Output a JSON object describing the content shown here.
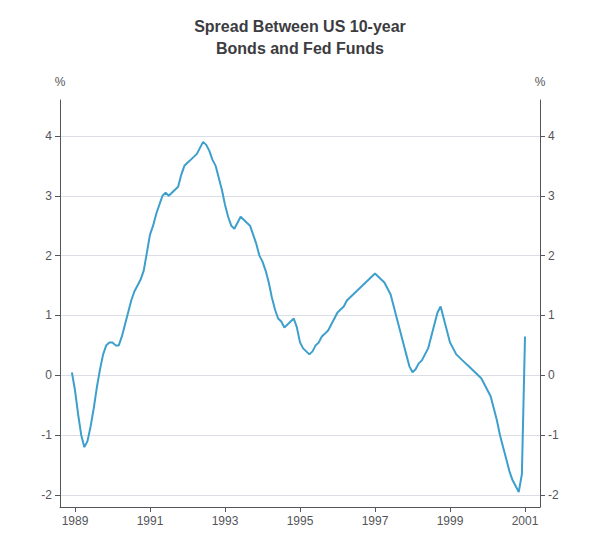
{
  "chart_data": {
    "type": "line",
    "title": "Spread Between US 10-year\nBonds and Fed Funds",
    "ylabel": "%",
    "y2label": "%",
    "color": "#3d9fcc",
    "grid": true,
    "xlim": [
      1988.6,
      2001.4
    ],
    "xticks": [
      1989,
      1991,
      1993,
      1995,
      1997,
      1999,
      2001
    ],
    "ylim": [
      -2.2,
      4.6
    ],
    "yticks": [
      -2,
      -1,
      0,
      1,
      2,
      3,
      4
    ],
    "y2lim": [
      -2.2,
      4.6
    ],
    "y2ticks": [
      -2,
      -1,
      0,
      1,
      2,
      3,
      4
    ],
    "x": [
      1988.917,
      1989.0,
      1989.083,
      1989.167,
      1989.25,
      1989.333,
      1989.417,
      1989.5,
      1989.583,
      1989.667,
      1989.75,
      1989.833,
      1989.917,
      1990.0,
      1990.083,
      1990.167,
      1990.25,
      1990.333,
      1990.417,
      1990.5,
      1990.583,
      1990.667,
      1990.75,
      1990.833,
      1990.917,
      1991.0,
      1991.083,
      1991.167,
      1991.25,
      1991.333,
      1991.417,
      1991.5,
      1991.583,
      1991.667,
      1991.75,
      1991.833,
      1991.917,
      1992.0,
      1992.083,
      1992.167,
      1992.25,
      1992.333,
      1992.417,
      1992.5,
      1992.583,
      1992.667,
      1992.75,
      1992.833,
      1992.917,
      1993.0,
      1993.083,
      1993.167,
      1993.25,
      1993.333,
      1993.417,
      1993.5,
      1993.583,
      1993.667,
      1993.75,
      1993.833,
      1993.917,
      1994.0,
      1994.083,
      1994.167,
      1994.25,
      1994.333,
      1994.417,
      1994.5,
      1994.583,
      1994.667,
      1994.75,
      1994.833,
      1994.917,
      1995.0,
      1995.083,
      1995.167,
      1995.25,
      1995.333,
      1995.417,
      1995.5,
      1995.583,
      1995.667,
      1995.75,
      1995.833,
      1995.917,
      1996.0,
      1996.083,
      1996.167,
      1996.25,
      1996.333,
      1996.417,
      1996.5,
      1996.583,
      1996.667,
      1996.75,
      1996.833,
      1996.917,
      1997.0,
      1997.083,
      1997.167,
      1997.25,
      1997.333,
      1997.417,
      1997.5,
      1997.583,
      1997.667,
      1997.75,
      1997.833,
      1997.917,
      1998.0,
      1998.083,
      1998.167,
      1998.25,
      1998.333,
      1998.417,
      1998.5,
      1998.583,
      1998.667,
      1998.75,
      1998.833,
      1998.917,
      1999.0,
      1999.083,
      1999.167,
      1999.25,
      1999.333,
      1999.417,
      1999.5,
      1999.583,
      1999.667,
      1999.75,
      1999.833,
      1999.917,
      2000.0,
      2000.083,
      2000.167,
      2000.25,
      2000.333,
      2000.417,
      2000.5,
      2000.583,
      2000.667,
      2000.75,
      2000.833,
      2000.917,
      2001.0
    ],
    "values": [
      0.05,
      -0.25,
      -0.65,
      -1.0,
      -1.2,
      -1.1,
      -0.85,
      -0.55,
      -0.2,
      0.1,
      0.35,
      0.5,
      0.55,
      0.55,
      0.5,
      0.5,
      0.65,
      0.85,
      1.05,
      1.25,
      1.4,
      1.5,
      1.6,
      1.75,
      2.05,
      2.35,
      2.5,
      2.7,
      2.85,
      3.0,
      3.05,
      3.0,
      3.05,
      3.1,
      3.15,
      3.35,
      3.5,
      3.55,
      3.6,
      3.65,
      3.7,
      3.8,
      3.9,
      3.85,
      3.75,
      3.6,
      3.5,
      3.3,
      3.1,
      2.85,
      2.65,
      2.5,
      2.45,
      2.55,
      2.65,
      2.6,
      2.55,
      2.5,
      2.35,
      2.2,
      2.0,
      1.9,
      1.75,
      1.55,
      1.3,
      1.1,
      0.95,
      0.9,
      0.8,
      0.85,
      0.9,
      0.95,
      0.8,
      0.55,
      0.45,
      0.4,
      0.35,
      0.4,
      0.5,
      0.55,
      0.65,
      0.7,
      0.75,
      0.85,
      0.95,
      1.05,
      1.1,
      1.15,
      1.25,
      1.3,
      1.35,
      1.4,
      1.45,
      1.5,
      1.55,
      1.6,
      1.65,
      1.7,
      1.65,
      1.6,
      1.55,
      1.45,
      1.35,
      1.15,
      0.95,
      0.75,
      0.55,
      0.35,
      0.15,
      0.05,
      0.1,
      0.2,
      0.25,
      0.35,
      0.45,
      0.65,
      0.85,
      1.05,
      1.15,
      0.95,
      0.75,
      0.55,
      0.45,
      0.35,
      0.3,
      0.25,
      0.2,
      0.15,
      0.1,
      0.05,
      0.0,
      -0.05,
      -0.15,
      -0.25,
      -0.35,
      -0.55,
      -0.75,
      -1.0,
      -1.2,
      -1.4,
      -1.6,
      -1.75,
      -1.85,
      -1.95,
      -1.65,
      0.65
    ]
  }
}
